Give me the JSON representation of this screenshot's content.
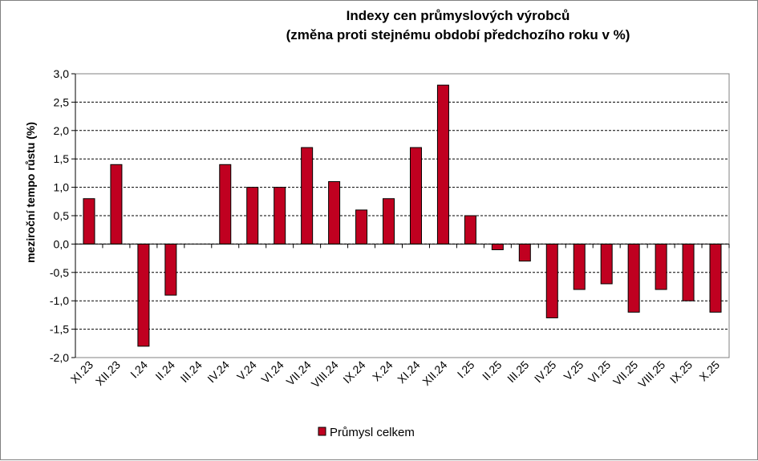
{
  "chart_data": {
    "type": "bar",
    "title": "Indexy cen průmyslových výrobců",
    "subtitle": "(změna proti stejnému období předchozího roku v %)",
    "xlabel": "",
    "ylabel": "meziroční tempo růstu (%)",
    "ylim": [
      -2.0,
      3.0
    ],
    "ytick_step": 0.5,
    "grid": true,
    "legend_position": "bottom-center",
    "categories": [
      "XI.23",
      "XII.23",
      "I.24",
      "II.24",
      "III.24",
      "IV.24",
      "V.24",
      "VI.24",
      "VII.24",
      "VIII.24",
      "IX.24",
      "X.24",
      "XI.24",
      "XII.24",
      "I.25",
      "II.25",
      "III.25",
      "IV.25",
      "V.25",
      "VI.25",
      "VII.25",
      "VIII.25",
      "IX.25",
      "X.25"
    ],
    "series": [
      {
        "name": "Průmysl celkem",
        "color": "#c00020",
        "values": [
          0.8,
          1.4,
          -1.8,
          -0.9,
          0.0,
          1.4,
          1.0,
          1.0,
          1.7,
          1.1,
          0.6,
          0.8,
          1.7,
          2.8,
          0.5,
          -0.1,
          -0.3,
          -1.3,
          -0.8,
          -0.7,
          -1.2,
          -0.8,
          -1.0,
          -1.2
        ]
      }
    ]
  }
}
